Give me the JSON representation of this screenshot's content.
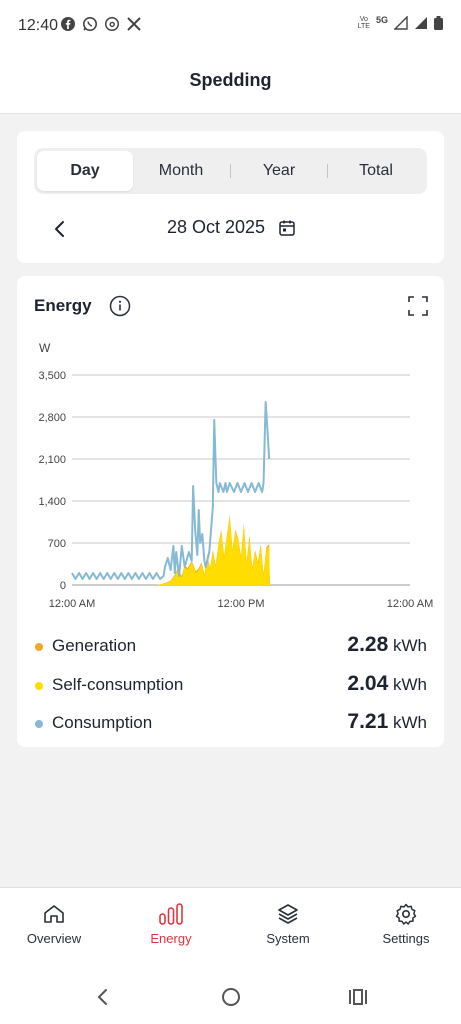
{
  "status_bar": {
    "time": "12:40",
    "app_icons": [
      "facebook-icon",
      "whatsapp-icon",
      "threads-icon",
      "x-icon"
    ],
    "volte_top": "Vo",
    "volte_bottom": "LTE",
    "network": "5G",
    "indicators": [
      "signal-icon",
      "signal-icon",
      "battery-icon"
    ]
  },
  "app_bar": {
    "title": "Spedding"
  },
  "period_tabs": {
    "items": [
      {
        "label": "Day",
        "active": true
      },
      {
        "label": "Month",
        "active": false
      },
      {
        "label": "Year",
        "active": false
      },
      {
        "label": "Total",
        "active": false
      }
    ]
  },
  "date_nav": {
    "date": "28 Oct 2025",
    "prev_icon": "chevron-left-icon",
    "calendar_icon": "calendar-icon"
  },
  "energy_card": {
    "title": "Energy",
    "info_icon": "info-icon",
    "expand_icon": "fullscreen-icon"
  },
  "chart_data": {
    "type": "area",
    "ylabel": "W",
    "ylim": [
      0,
      3500
    ],
    "yticks": [
      "0",
      "700",
      "1,400",
      "2,100",
      "2,800",
      "3,500"
    ],
    "ytick_values": [
      0,
      700,
      1400,
      2100,
      2800,
      3500
    ],
    "xticks": [
      "12:00 AM",
      "12:00 PM",
      "12:00 AM"
    ],
    "xtick_hours": [
      0,
      12,
      24
    ],
    "xlim": [
      0,
      24
    ],
    "grid": true,
    "colors": {
      "generation": "#f5a623",
      "self_consumption": "#ffdd00",
      "consumption": "#86b9d4"
    },
    "series": [
      {
        "name": "Consumption",
        "x": [
          0,
          0.25,
          0.5,
          0.75,
          1,
          1.25,
          1.5,
          1.75,
          2,
          2.25,
          2.5,
          2.75,
          3,
          3.25,
          3.5,
          3.75,
          4,
          4.25,
          4.5,
          4.75,
          5,
          5.25,
          5.5,
          5.75,
          6,
          6.25,
          6.5,
          6.6,
          6.8,
          7,
          7.2,
          7.3,
          7.4,
          7.6,
          7.8,
          8,
          8.3,
          8.5,
          8.6,
          8.75,
          8.9,
          9,
          9.1,
          9.25,
          9.4,
          9.5,
          9.75,
          10,
          10.1,
          10.25,
          10.4,
          10.5,
          10.75,
          10.9,
          11,
          11.2,
          11.5,
          11.75,
          12,
          12.25,
          12.5,
          12.75,
          13,
          13.25,
          13.5,
          13.6,
          13.75,
          13.9,
          14
        ],
        "values": [
          200,
          100,
          200,
          100,
          200,
          100,
          200,
          100,
          200,
          100,
          200,
          100,
          200,
          100,
          200,
          100,
          200,
          100,
          200,
          100,
          200,
          100,
          200,
          100,
          200,
          100,
          150,
          300,
          450,
          250,
          650,
          200,
          550,
          150,
          650,
          300,
          550,
          400,
          1650,
          900,
          500,
          1250,
          700,
          850,
          400,
          300,
          550,
          1300,
          2750,
          1700,
          1550,
          1700,
          1550,
          1700,
          1550,
          1700,
          1550,
          1700,
          1550,
          1700,
          1550,
          1700,
          1550,
          1700,
          1550,
          1700,
          3050,
          2500,
          2100
        ]
      },
      {
        "name": "Self-consumption",
        "x": [
          6,
          6.5,
          7,
          7.3,
          7.5,
          7.8,
          8,
          8.2,
          8.5,
          8.8,
          9,
          9.2,
          9.4,
          9.6,
          9.8,
          10,
          10.2,
          10.4,
          10.6,
          10.8,
          11,
          11.2,
          11.4,
          11.6,
          11.8,
          12,
          12.2,
          12.4,
          12.6,
          12.8,
          13,
          13.2,
          13.4,
          13.6,
          13.8,
          14,
          14.05
        ],
        "values": [
          0,
          20,
          60,
          150,
          250,
          120,
          300,
          250,
          380,
          200,
          250,
          350,
          150,
          500,
          250,
          550,
          300,
          650,
          900,
          450,
          800,
          1150,
          550,
          900,
          750,
          450,
          1000,
          350,
          800,
          250,
          550,
          350,
          650,
          150,
          600,
          650,
          0
        ]
      },
      {
        "name": "Generation",
        "x": [
          6,
          6.5,
          7,
          7.3,
          7.5,
          7.8,
          8,
          8.2,
          8.5,
          8.8,
          9,
          9.2,
          9.4,
          9.6,
          9.8,
          10,
          10.2,
          10.4,
          10.6,
          10.8,
          11,
          11.2,
          11.4,
          11.6,
          11.8,
          12,
          12.2,
          12.4,
          12.6,
          12.8,
          13,
          13.2,
          13.4,
          13.6,
          13.8,
          14,
          14.05
        ],
        "values": [
          0,
          25,
          70,
          170,
          280,
          150,
          330,
          280,
          400,
          230,
          280,
          380,
          170,
          520,
          280,
          580,
          330,
          680,
          920,
          480,
          830,
          1170,
          580,
          920,
          780,
          480,
          1020,
          380,
          830,
          280,
          580,
          380,
          680,
          180,
          630,
          680,
          0
        ]
      }
    ]
  },
  "legend": {
    "items": [
      {
        "key": "generation",
        "label": "Generation",
        "value": "2.28",
        "unit": "kWh",
        "color": "#f5a623"
      },
      {
        "key": "self_consumption",
        "label": "Self-consumption",
        "value": "2.04",
        "unit": "kWh",
        "color": "#ffdd00"
      },
      {
        "key": "consumption",
        "label": "Consumption",
        "value": "7.21",
        "unit": "kWh",
        "color": "#86b9d4"
      }
    ]
  },
  "bottom_nav": {
    "items": [
      {
        "label": "Overview",
        "icon": "home-icon",
        "active": false
      },
      {
        "label": "Energy",
        "icon": "bar-chart-icon",
        "active": true
      },
      {
        "label": "System",
        "icon": "layers-icon",
        "active": false
      },
      {
        "label": "Settings",
        "icon": "gear-icon",
        "active": false
      }
    ],
    "active_color": "#e0353b"
  },
  "system_nav": {
    "icons": [
      "back-icon",
      "home-circle-icon",
      "recents-icon"
    ]
  }
}
